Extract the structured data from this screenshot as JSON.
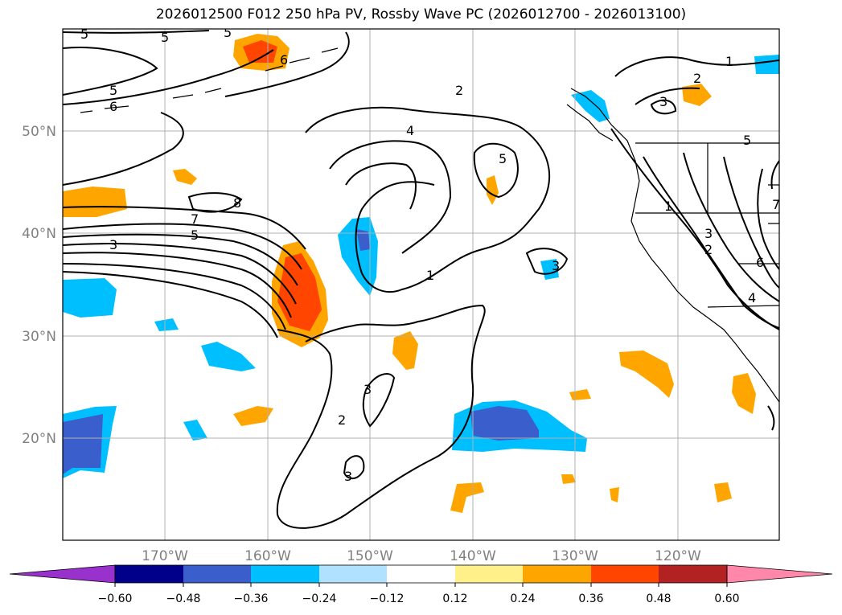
{
  "title": "2026012500 F012 250 hPa PV, Rossby Wave PC (2026012700 - 2026013100)",
  "map": {
    "lat_ticks": [
      "50°N",
      "40°N",
      "30°N",
      "20°N"
    ],
    "lon_ticks": [
      "170°W",
      "160°W",
      "150°W",
      "140°W",
      "130°W",
      "120°W"
    ],
    "contour_labels": [
      "5",
      "5",
      "5",
      "5",
      "6",
      "6",
      "8",
      "7",
      "5",
      "3",
      "4",
      "2",
      "5",
      "1",
      "3",
      "3",
      "2",
      "3",
      "2",
      "1",
      "2",
      "3",
      "4",
      "5",
      "6",
      "7",
      "1",
      "3"
    ]
  },
  "colorbar": {
    "ticks": [
      "−0.60",
      "−0.48",
      "−0.36",
      "−0.24",
      "−0.12",
      "0.12",
      "0.24",
      "0.36",
      "0.48",
      "0.60"
    ],
    "colors": [
      "#9932cc",
      "#00008b",
      "#3a5fcd",
      "#00bfff",
      "#b0e2ff",
      "#ffffff",
      "#fff08a",
      "#ffa500",
      "#ff4500",
      "#b22222",
      "#ff88aa"
    ]
  }
}
